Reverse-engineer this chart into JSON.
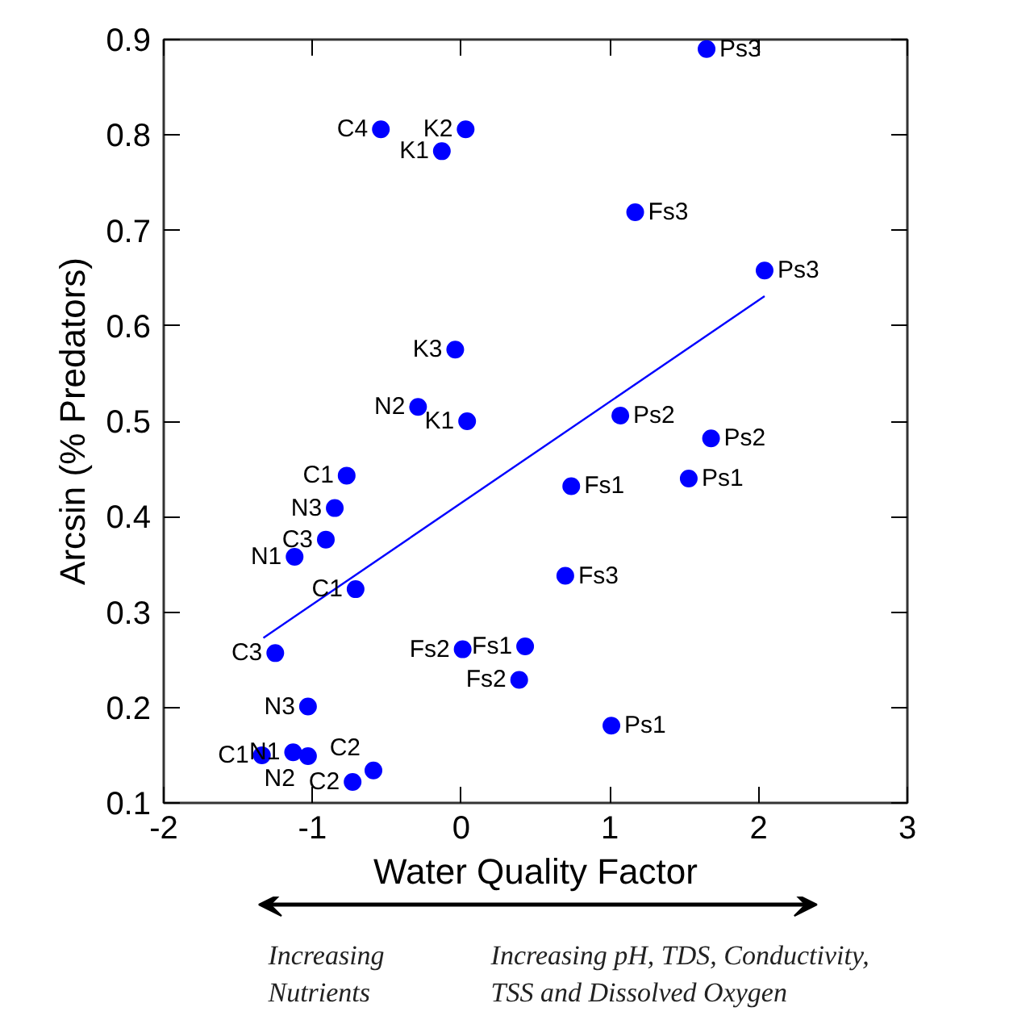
{
  "chart_data": {
    "type": "scatter",
    "xlabel": "Water Quality Factor",
    "ylabel": "Arcsin (% Predators)",
    "xlim": [
      -2,
      3
    ],
    "xticks": [
      -2,
      -1,
      0,
      1,
      2,
      3
    ],
    "ylim": [
      0.1,
      0.9
    ],
    "yticks": [
      0.1,
      0.2,
      0.3,
      0.4,
      0.5,
      0.6,
      0.7,
      0.8,
      0.9
    ],
    "grid": false,
    "series": [
      {
        "type": "scatter",
        "marker": "circle",
        "color": "#0000ff",
        "x": [
          1.65,
          -0.54,
          0.03,
          -0.13,
          1.17,
          2.04,
          -0.04,
          -0.29,
          0.04,
          1.07,
          1.68,
          -0.77,
          0.74,
          1.53,
          -0.85,
          -0.91,
          -1.12,
          -0.71,
          0.7,
          -1.25,
          0.01,
          0.43,
          0.39,
          -1.03,
          1.01,
          -1.34,
          -1.13,
          -1.03,
          -0.73,
          -0.59
        ],
        "values": [
          0.89,
          0.806,
          0.806,
          0.783,
          0.719,
          0.658,
          0.575,
          0.515,
          0.5,
          0.506,
          0.482,
          0.443,
          0.432,
          0.44,
          0.409,
          0.376,
          0.358,
          0.324,
          0.338,
          0.257,
          0.261,
          0.264,
          0.229,
          0.201,
          0.181,
          0.15,
          0.153,
          0.149,
          0.122,
          0.134
        ]
      },
      {
        "type": "line",
        "color": "#0000ff",
        "line_style": "solid",
        "x": [
          -1.33,
          2.04
        ],
        "values": [
          0.273,
          0.631
        ]
      }
    ],
    "annotations": [
      {
        "text": "Ps3",
        "x": 1.65,
        "y": 0.89
      },
      {
        "text": "C4",
        "x": -0.54,
        "y": 0.806
      },
      {
        "text": "K2",
        "x": 0.03,
        "y": 0.806
      },
      {
        "text": "K1",
        "x": -0.13,
        "y": 0.783
      },
      {
        "text": "Fs3",
        "x": 1.17,
        "y": 0.719
      },
      {
        "text": "Ps3",
        "x": 2.04,
        "y": 0.658
      },
      {
        "text": "K3",
        "x": -0.04,
        "y": 0.575
      },
      {
        "text": "N2",
        "x": -0.29,
        "y": 0.515
      },
      {
        "text": "K1",
        "x": 0.04,
        "y": 0.5
      },
      {
        "text": "Ps2",
        "x": 1.07,
        "y": 0.506
      },
      {
        "text": "Ps2",
        "x": 1.68,
        "y": 0.482
      },
      {
        "text": "C1",
        "x": -0.77,
        "y": 0.443
      },
      {
        "text": "Fs1",
        "x": 0.74,
        "y": 0.432
      },
      {
        "text": "Ps1",
        "x": 1.53,
        "y": 0.44
      },
      {
        "text": "N3",
        "x": -0.85,
        "y": 0.409
      },
      {
        "text": "C3",
        "x": -0.91,
        "y": 0.376
      },
      {
        "text": "N1",
        "x": -1.12,
        "y": 0.358
      },
      {
        "text": "C1",
        "x": -0.71,
        "y": 0.324
      },
      {
        "text": "Fs3",
        "x": 0.7,
        "y": 0.338
      },
      {
        "text": "C3",
        "x": -1.25,
        "y": 0.257
      },
      {
        "text": "Fs2",
        "x": 0.01,
        "y": 0.261
      },
      {
        "text": "Fs1",
        "x": 0.43,
        "y": 0.264
      },
      {
        "text": "Fs2",
        "x": 0.39,
        "y": 0.229
      },
      {
        "text": "N3",
        "x": -1.03,
        "y": 0.201
      },
      {
        "text": "Ps1",
        "x": 1.01,
        "y": 0.181
      },
      {
        "text": "C1",
        "x": -1.34,
        "y": 0.15
      },
      {
        "text": "N1",
        "x": -1.13,
        "y": 0.153
      },
      {
        "text": "N2",
        "x": -1.03,
        "y": 0.149
      },
      {
        "text": "C2",
        "x": -0.73,
        "y": 0.122
      },
      {
        "text": "C2",
        "x": -0.59,
        "y": 0.134
      },
      "Increasing\nNutrients",
      "Increasing pH, TDS, Conductivity,\nTSS  and Dissolved Oxygen"
    ]
  }
}
